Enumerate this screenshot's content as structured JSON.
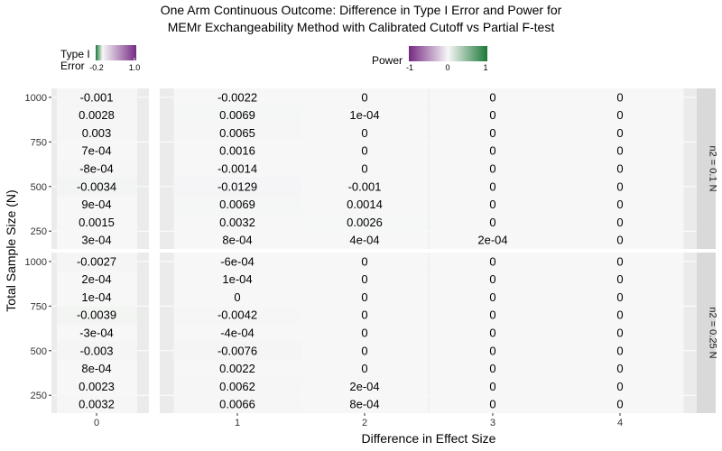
{
  "chart_data": {
    "type": "heatmap",
    "title_line1": "One Arm Continuous Outcome: Difference in Type I Error and Power for",
    "title_line2": "MEMr Exchangeability Method with Calibrated Cutoff vs Partial F-test",
    "xlabel": "Difference in Effect Size",
    "ylabel": "Total Sample Size (N)",
    "y_ticks": [
      "1000",
      "750",
      "500",
      "250"
    ],
    "y_tick_values": [
      1000,
      750,
      500,
      250
    ],
    "y_values": [
      1000,
      900,
      800,
      700,
      600,
      500,
      400,
      300,
      200
    ],
    "x_groups": [
      {
        "label": "0",
        "x_ticks": [
          "0"
        ]
      },
      {
        "label": "1-4",
        "x_ticks": [
          "1",
          "2",
          "3",
          "4"
        ]
      }
    ],
    "legend_type1": {
      "title_line1": "Type I",
      "title_line2": "Error",
      "tick_labels": [
        "-0.2",
        "1.0"
      ],
      "limits": [
        -0.2,
        1.0
      ],
      "low_color": "#1b7837",
      "mid_color": "#f7f7f7",
      "high_color": "#762a83"
    },
    "legend_power": {
      "title": "Power",
      "tick_labels": [
        "-1",
        "0",
        "1"
      ],
      "limits": [
        -1,
        1
      ],
      "low_color": "#762a83",
      "mid_color": "#f7f7f7",
      "high_color": "#1b7837"
    },
    "facets": [
      {
        "strip": "n2 = 0.1 N",
        "type1_labels": [
          "-0.001",
          "0.0028",
          "0.003",
          "7e-04",
          "-8e-04",
          "-0.0034",
          "9e-04",
          "0.0015",
          "3e-04"
        ],
        "type1_values": [
          -0.001,
          0.0028,
          0.003,
          0.0007,
          -0.0008,
          -0.0034,
          0.0009,
          0.0015,
          0.0003
        ],
        "power_labels": [
          [
            "-0.0022",
            "0",
            "0",
            "0"
          ],
          [
            "0.0069",
            "1e-04",
            "0",
            "0"
          ],
          [
            "0.0065",
            "0",
            "0",
            "0"
          ],
          [
            "0.0016",
            "0",
            "0",
            "0"
          ],
          [
            "-0.0014",
            "0",
            "0",
            "0"
          ],
          [
            "-0.0129",
            "-0.001",
            "0",
            "0"
          ],
          [
            "0.0069",
            "0.0014",
            "0",
            "0"
          ],
          [
            "0.0032",
            "0.0026",
            "0",
            "0"
          ],
          [
            "8e-04",
            "4e-04",
            "2e-04",
            "0"
          ]
        ],
        "power_values": [
          [
            -0.0022,
            0,
            0,
            0
          ],
          [
            0.0069,
            0.0001,
            0,
            0
          ],
          [
            0.0065,
            0,
            0,
            0
          ],
          [
            0.0016,
            0,
            0,
            0
          ],
          [
            -0.0014,
            0,
            0,
            0
          ],
          [
            -0.0129,
            -0.001,
            0,
            0
          ],
          [
            0.0069,
            0.0014,
            0,
            0
          ],
          [
            0.0032,
            0.0026,
            0,
            0
          ],
          [
            0.0008,
            0.0004,
            0.0002,
            0
          ]
        ]
      },
      {
        "strip": "n2 = 0.25 N",
        "type1_labels": [
          "-0.0027",
          "2e-04",
          "1e-04",
          "-0.0039",
          "-3e-04",
          "-0.003",
          "8e-04",
          "0.0023",
          "0.0032"
        ],
        "type1_values": [
          -0.0027,
          0.0002,
          0.0001,
          -0.0039,
          -0.0003,
          -0.003,
          0.0008,
          0.0023,
          0.0032
        ],
        "power_labels": [
          [
            "-6e-04",
            "0",
            "0",
            "0"
          ],
          [
            "1e-04",
            "0",
            "0",
            "0"
          ],
          [
            "0",
            "0",
            "0",
            "0"
          ],
          [
            "-0.0042",
            "0",
            "0",
            "0"
          ],
          [
            "-4e-04",
            "0",
            "0",
            "0"
          ],
          [
            "-0.0076",
            "0",
            "0",
            "0"
          ],
          [
            "0.0022",
            "0",
            "0",
            "0"
          ],
          [
            "0.0062",
            "2e-04",
            "0",
            "0"
          ],
          [
            "0.0066",
            "8e-04",
            "0",
            "0"
          ]
        ],
        "power_values": [
          [
            -0.0006,
            0,
            0,
            0
          ],
          [
            0.0001,
            0,
            0,
            0
          ],
          [
            0,
            0,
            0,
            0
          ],
          [
            -0.0042,
            0,
            0,
            0
          ],
          [
            -0.0004,
            0,
            0,
            0
          ],
          [
            -0.0076,
            0,
            0,
            0
          ],
          [
            0.0022,
            0,
            0,
            0
          ],
          [
            0.0062,
            0.0002,
            0,
            0
          ],
          [
            0.0066,
            0.0008,
            0,
            0
          ]
        ]
      }
    ],
    "colors": {
      "panel_bg": "#ebebeb",
      "strip_bg": "#d9d9d9",
      "cell_base": "#ffffff"
    }
  }
}
